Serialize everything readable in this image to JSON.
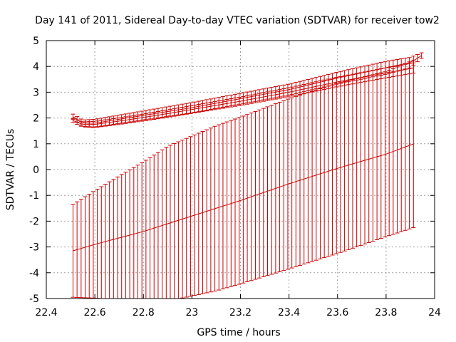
{
  "chart_data": {
    "type": "errorbar",
    "title": "Day 141 of 2011, Sidereal Day-to-day VTEC variation (SDTVAR) for receiver tow2",
    "xlabel": "GPS time / hours",
    "ylabel": "SDTVAR / TECUs",
    "xlim": [
      22.4,
      24.0
    ],
    "ylim": [
      -5,
      5
    ],
    "xticks": [
      22.4,
      22.6,
      22.8,
      23.0,
      23.2,
      23.4,
      23.6,
      23.8,
      24.0
    ],
    "xtick_labels": [
      "22.4",
      "22.6",
      "22.8",
      "23",
      "23.2",
      "23.4",
      "23.6",
      "23.8",
      "24"
    ],
    "yticks": [
      -5,
      -4,
      -3,
      -2,
      -1,
      0,
      1,
      2,
      3,
      4,
      5
    ],
    "ytick_labels": [
      "-5",
      "-4",
      "-3",
      "-2",
      "-1",
      "0",
      "1",
      "2",
      "3",
      "4",
      "5"
    ],
    "grid": true,
    "color": "#cc0000",
    "series": [
      {
        "name": "upper",
        "x_start": 22.51,
        "x_end": 23.96,
        "step": 0.0167,
        "center_points": [
          [
            22.51,
            2.05
          ],
          [
            22.55,
            1.8
          ],
          [
            22.6,
            1.8
          ],
          [
            22.7,
            1.95
          ],
          [
            22.8,
            2.1
          ],
          [
            22.9,
            2.25
          ],
          [
            23.0,
            2.4
          ],
          [
            23.2,
            2.75
          ],
          [
            23.4,
            3.1
          ],
          [
            23.6,
            3.55
          ],
          [
            23.8,
            3.95
          ],
          [
            23.9,
            4.15
          ],
          [
            23.96,
            4.5
          ]
        ],
        "halfwidth_points": [
          [
            22.51,
            0.1
          ],
          [
            22.6,
            0.15
          ],
          [
            23.0,
            0.2
          ],
          [
            23.5,
            0.22
          ],
          [
            23.8,
            0.25
          ],
          [
            23.9,
            0.2
          ],
          [
            23.96,
            0.08
          ]
        ]
      },
      {
        "name": "middle",
        "x_start": 22.51,
        "x_end": 23.92,
        "step": 0.0167,
        "center_points": [
          [
            22.51,
            1.9
          ],
          [
            22.55,
            1.75
          ],
          [
            22.6,
            1.75
          ],
          [
            22.7,
            1.88
          ],
          [
            22.8,
            2.02
          ],
          [
            22.9,
            2.17
          ],
          [
            23.0,
            2.33
          ],
          [
            23.2,
            2.65
          ],
          [
            23.4,
            3.0
          ],
          [
            23.6,
            3.4
          ],
          [
            23.8,
            3.75
          ],
          [
            23.92,
            3.95
          ]
        ],
        "halfwidth_points": [
          [
            22.51,
            0.08
          ],
          [
            22.6,
            0.12
          ],
          [
            23.0,
            0.15
          ],
          [
            23.5,
            0.18
          ],
          [
            23.92,
            0.2
          ]
        ]
      },
      {
        "name": "lower",
        "x_start": 22.51,
        "x_end": 23.92,
        "step": 0.0167,
        "center_points": [
          [
            22.51,
            -3.15
          ],
          [
            22.6,
            -2.9
          ],
          [
            22.8,
            -2.4
          ],
          [
            23.0,
            -1.8
          ],
          [
            23.2,
            -1.2
          ],
          [
            23.4,
            -0.55
          ],
          [
            23.6,
            0.05
          ],
          [
            23.8,
            0.6
          ],
          [
            23.92,
            1.02
          ]
        ],
        "halfwidth_points": [
          [
            22.51,
            1.8
          ],
          [
            22.7,
            2.4
          ],
          [
            22.9,
            3.0
          ],
          [
            23.1,
            3.2
          ],
          [
            23.4,
            3.3
          ],
          [
            23.6,
            3.3
          ],
          [
            23.8,
            3.2
          ],
          [
            23.92,
            3.25
          ]
        ]
      }
    ]
  }
}
